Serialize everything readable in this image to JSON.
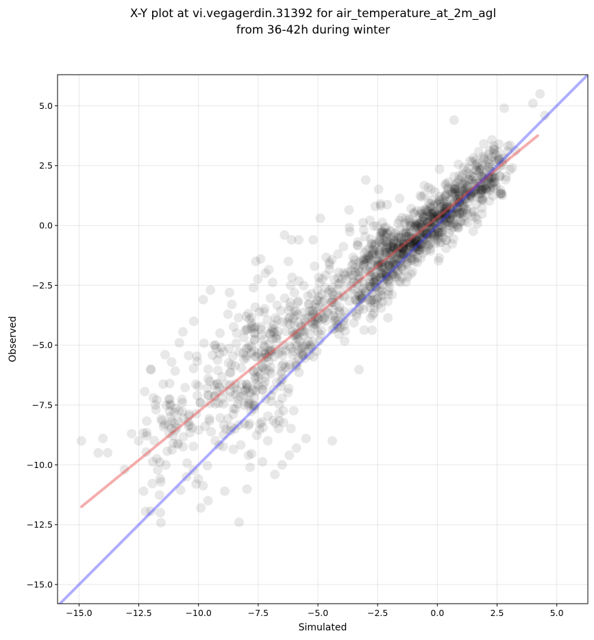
{
  "chart_data": {
    "type": "scatter",
    "title": "X-Y plot at vi.vegagerdin.31392 for air_temperature_at_2m_agl",
    "subtitle": "from 36-42h during winter",
    "xlabel": "Simulated",
    "ylabel": "Observed",
    "xlim": [
      -15.9,
      6.3
    ],
    "ylim": [
      -15.8,
      6.3
    ],
    "xticks": [
      -15.0,
      -12.5,
      -10.0,
      -7.5,
      -5.0,
      -2.5,
      0.0,
      2.5,
      5.0
    ],
    "yticks": [
      -15.0,
      -12.5,
      -10.0,
      -7.5,
      -5.0,
      -2.5,
      0.0,
      2.5,
      5.0
    ],
    "xtick_labels": [
      "−15.0",
      "−12.5",
      "−10.0",
      "−7.5",
      "−5.0",
      "−2.5",
      "0.0",
      "2.5",
      "5.0"
    ],
    "ytick_labels": [
      "−15.0",
      "−12.5",
      "−10.0",
      "−7.5",
      "−5.0",
      "−2.5",
      "0.0",
      "2.5",
      "5.0"
    ],
    "grid": true,
    "point_color": "#000000",
    "point_alpha": 0.09,
    "series": [
      {
        "type": "scatter",
        "color": "#000000",
        "x": [
          -14.9,
          -14.2,
          -14.0,
          -13.8,
          -13.1,
          -12.8,
          -12.5,
          -12.3,
          -12.0,
          -11.8,
          -11.6,
          -11.4,
          -11.2,
          -10.8,
          -10.2,
          -9.8,
          -9.5,
          -8.7,
          -8.6,
          -7.4,
          -7.2,
          -4.4,
          -6.4,
          -5.2,
          -4.9,
          -6.1,
          -5.8,
          -7.6,
          -7.7,
          -8.9,
          -9.6,
          -9.9,
          -10.5,
          -10.1,
          -6.8,
          -6.5,
          -6.2,
          -5.9,
          -5.5,
          -7.9,
          -8.3,
          -9.1,
          -8.0,
          -8.4,
          -9.3,
          -6.7,
          -3.0,
          -2.6,
          -3.1,
          0.7,
          2.8,
          4.0,
          4.3,
          4.5
        ],
        "y": [
          -9.0,
          -9.5,
          -8.9,
          -9.5,
          -10.2,
          -8.7,
          -9.0,
          -11.1,
          -6.0,
          -7.5,
          -12.0,
          -5.4,
          -6.6,
          -4.9,
          -4.0,
          -3.1,
          -2.7,
          -2.8,
          -3.3,
          -1.4,
          -2.0,
          -9.0,
          -0.4,
          -0.6,
          0.3,
          -0.6,
          -0.6,
          -1.5,
          -2.6,
          -11.1,
          -11.5,
          -11.8,
          -10.5,
          -10.8,
          -10.4,
          -10.0,
          -9.6,
          -9.3,
          -8.9,
          -9.6,
          -12.4,
          -4.5,
          -3.8,
          -4.5,
          -5.0,
          -4.6,
          1.9,
          0.8,
          -3.5,
          4.4,
          4.9,
          5.1,
          5.5,
          4.6
        ]
      }
    ],
    "lines": [
      {
        "name": "fit",
        "color": "#e8494a",
        "alpha": 0.45,
        "x": [
          -14.9,
          4.2
        ],
        "y": [
          -11.75,
          3.75
        ]
      },
      {
        "name": "one-to-one",
        "color": "#3333ff",
        "alpha": 0.4,
        "x": [
          -15.9,
          6.3
        ],
        "y": [
          -15.9,
          6.3
        ]
      }
    ]
  }
}
